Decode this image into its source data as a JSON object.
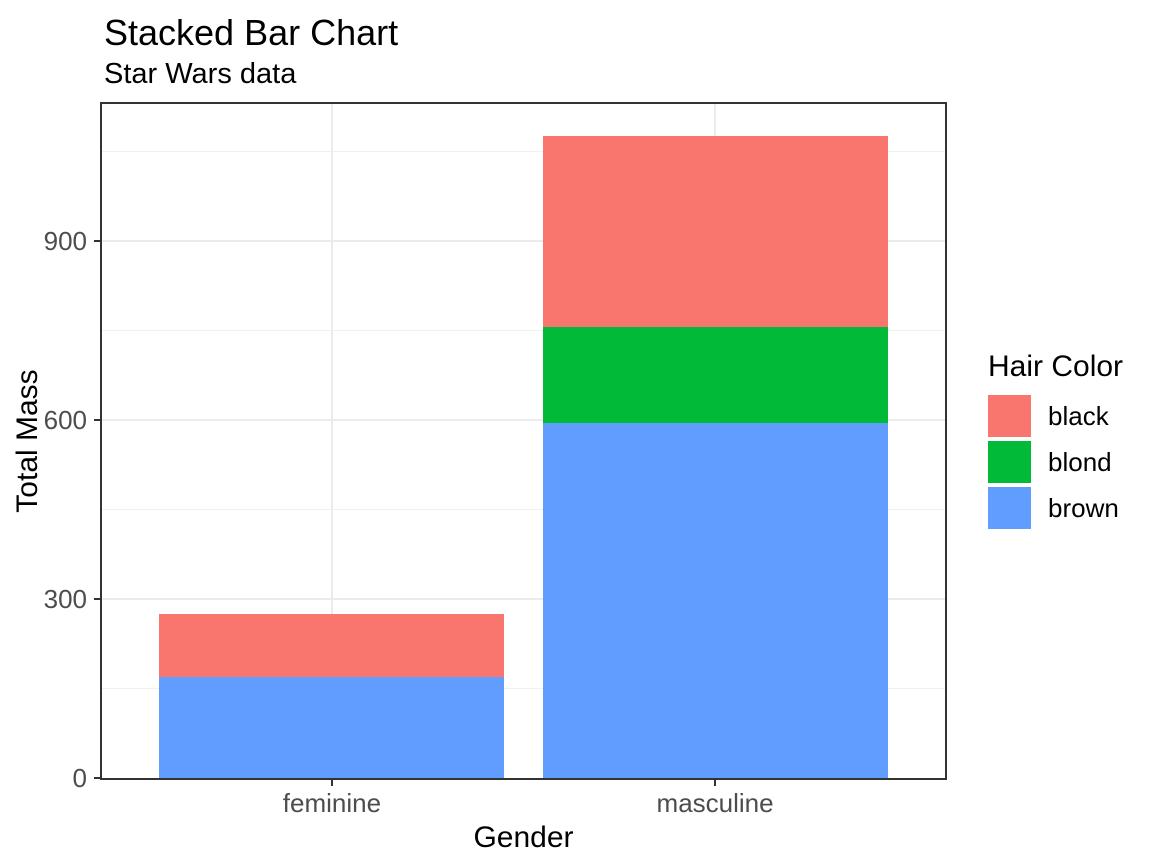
{
  "figure": {
    "title": "Stacked Bar Chart",
    "subtitle": "Star Wars data"
  },
  "chart_data": {
    "type": "bar",
    "stacked": true,
    "title": "Stacked Bar Chart",
    "subtitle": "Star Wars data",
    "xlabel": "Gender",
    "ylabel": "Total Mass",
    "categories": [
      "feminine",
      "masculine"
    ],
    "series": [
      {
        "name": "black",
        "color": "#F8766D",
        "values": [
          106.2,
          320.2
        ]
      },
      {
        "name": "blond",
        "color": "#00BA38",
        "values": [
          0,
          161
        ]
      },
      {
        "name": "brown",
        "color": "#619CFF",
        "values": [
          169,
          594
        ]
      }
    ],
    "stack_order_bottom_to_top": [
      "brown",
      "blond",
      "black"
    ],
    "y_major_ticks": [
      0,
      300,
      600,
      900
    ],
    "y_minor_gridlines": [
      150,
      450,
      750,
      1050
    ],
    "ylim": [
      0,
      1129
    ],
    "grid": true,
    "legend": {
      "title": "Hair Color",
      "position": "right",
      "entries": [
        "black",
        "blond",
        "brown"
      ]
    }
  },
  "colors": {
    "panel_border": "#333333",
    "gridline_major": "#EBEBEB",
    "gridline_minor": "#F0F0F0",
    "tick_mark": "#333333",
    "tick_label": "#4D4D4D",
    "text": "#000000",
    "background": "#FFFFFF"
  }
}
